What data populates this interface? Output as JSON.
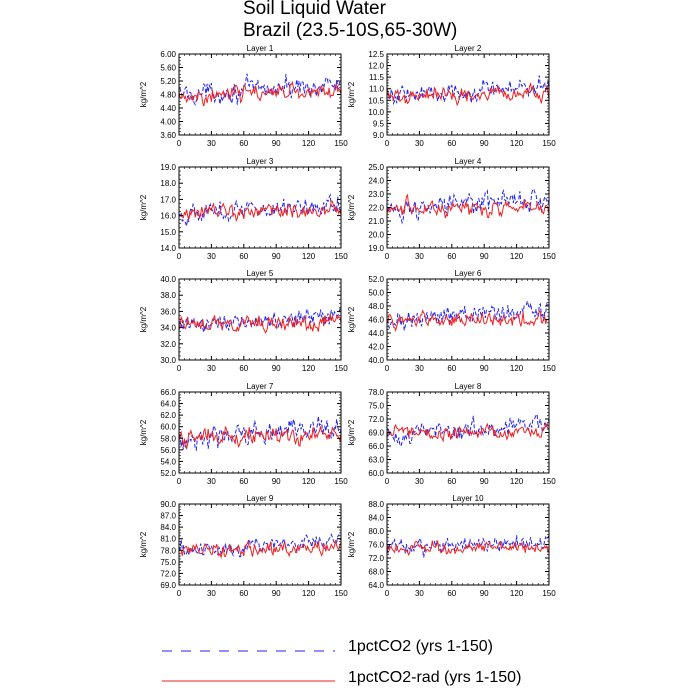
{
  "title": "Soil Liquid Water",
  "subtitle": "Brazil (23.5-10S,65-30W)",
  "colors": {
    "series_a": "#2222ee",
    "series_b": "#ee2222"
  },
  "legend": [
    {
      "label": "1pctCO2 (yrs 1-150)",
      "style": "dashed",
      "color": "#2222ee"
    },
    {
      "label": "1pctCO2-rad (yrs 1-150)",
      "style": "solid",
      "color": "#ee2222"
    }
  ],
  "chart_data": [
    {
      "type": "line",
      "title": "Layer 1",
      "ylabel": "kg/m^2",
      "xlim": [
        0,
        150
      ],
      "ylim": [
        3.6,
        6.0
      ],
      "xticks": [
        "0",
        "30",
        "60",
        "90",
        "120",
        "150"
      ],
      "yticks": [
        "3.60",
        "4.00",
        "4.40",
        "4.80",
        "5.20",
        "5.60",
        "6.00"
      ],
      "series": [
        {
          "name": "1pctCO2 (yrs 1-150)",
          "mean": 4.8,
          "amp": 0.5,
          "trend": 0.3
        },
        {
          "name": "1pctCO2-rad (yrs 1-150)",
          "mean": 4.8,
          "amp": 0.4,
          "trend": 0.1
        }
      ]
    },
    {
      "type": "line",
      "title": "Layer 2",
      "ylabel": "kg/m^2",
      "xlim": [
        0,
        150
      ],
      "ylim": [
        9.0,
        12.5
      ],
      "xticks": [
        "0",
        "30",
        "60",
        "90",
        "120",
        "150"
      ],
      "yticks": [
        "9.0",
        "9.5",
        "10.0",
        "10.5",
        "11.0",
        "11.5",
        "12.0",
        "12.5"
      ],
      "series": [
        {
          "name": "1pctCO2 (yrs 1-150)",
          "mean": 10.7,
          "amp": 0.7,
          "trend": 0.4
        },
        {
          "name": "1pctCO2-rad (yrs 1-150)",
          "mean": 10.7,
          "amp": 0.55,
          "trend": 0.1
        }
      ]
    },
    {
      "type": "line",
      "title": "Layer 3",
      "ylabel": "kg/m^2",
      "xlim": [
        0,
        150
      ],
      "ylim": [
        14.0,
        19.0
      ],
      "xticks": [
        "0",
        "30",
        "60",
        "90",
        "120",
        "150"
      ],
      "yticks": [
        "14.0",
        "15.0",
        "16.0",
        "17.0",
        "18.0",
        "19.0"
      ],
      "series": [
        {
          "name": "1pctCO2 (yrs 1-150)",
          "mean": 16.1,
          "amp": 1.0,
          "trend": 0.6
        },
        {
          "name": "1pctCO2-rad (yrs 1-150)",
          "mean": 16.1,
          "amp": 0.8,
          "trend": 0.2
        }
      ]
    },
    {
      "type": "line",
      "title": "Layer 4",
      "ylabel": "kg/m^2",
      "xlim": [
        0,
        150
      ],
      "ylim": [
        19.0,
        25.0
      ],
      "xticks": [
        "0",
        "30",
        "60",
        "90",
        "120",
        "150"
      ],
      "yticks": [
        "19.0",
        "20.0",
        "21.0",
        "22.0",
        "23.0",
        "24.0",
        "25.0"
      ],
      "series": [
        {
          "name": "1pctCO2 (yrs 1-150)",
          "mean": 21.8,
          "amp": 1.3,
          "trend": 0.8
        },
        {
          "name": "1pctCO2-rad (yrs 1-150)",
          "mean": 21.8,
          "amp": 1.0,
          "trend": 0.3
        }
      ]
    },
    {
      "type": "line",
      "title": "Layer 5",
      "ylabel": "kg/m^2",
      "xlim": [
        0,
        150
      ],
      "ylim": [
        30.0,
        40.0
      ],
      "xticks": [
        "0",
        "30",
        "60",
        "90",
        "120",
        "150"
      ],
      "yticks": [
        "30.0",
        "32.0",
        "34.0",
        "36.0",
        "38.0",
        "40.0"
      ],
      "series": [
        {
          "name": "1pctCO2 (yrs 1-150)",
          "mean": 34.3,
          "amp": 2.0,
          "trend": 1.2
        },
        {
          "name": "1pctCO2-rad (yrs 1-150)",
          "mean": 34.3,
          "amp": 1.6,
          "trend": 0.4
        }
      ]
    },
    {
      "type": "line",
      "title": "Layer 6",
      "ylabel": "kg/m^2",
      "xlim": [
        0,
        150
      ],
      "ylim": [
        40.0,
        52.0
      ],
      "xticks": [
        "0",
        "30",
        "60",
        "90",
        "120",
        "150"
      ],
      "yticks": [
        "40.0",
        "42.0",
        "44.0",
        "46.0",
        "48.0",
        "50.0",
        "52.0"
      ],
      "series": [
        {
          "name": "1pctCO2 (yrs 1-150)",
          "mean": 45.8,
          "amp": 2.5,
          "trend": 1.5
        },
        {
          "name": "1pctCO2-rad (yrs 1-150)",
          "mean": 45.8,
          "amp": 2.0,
          "trend": 0.5
        }
      ]
    },
    {
      "type": "line",
      "title": "Layer 7",
      "ylabel": "kg/m^2",
      "xlim": [
        0,
        150
      ],
      "ylim": [
        52.0,
        66.0
      ],
      "xticks": [
        "0",
        "30",
        "60",
        "90",
        "120",
        "150"
      ],
      "yticks": [
        "52.0",
        "54.0",
        "56.0",
        "58.0",
        "60.0",
        "62.0",
        "64.0",
        "66.0"
      ],
      "series": [
        {
          "name": "1pctCO2 (yrs 1-150)",
          "mean": 58.0,
          "amp": 3.0,
          "trend": 1.8
        },
        {
          "name": "1pctCO2-rad (yrs 1-150)",
          "mean": 58.0,
          "amp": 2.4,
          "trend": 0.6
        }
      ]
    },
    {
      "type": "line",
      "title": "Layer 8",
      "ylabel": "kg/m^2",
      "xlim": [
        0,
        150
      ],
      "ylim": [
        60.0,
        78.0
      ],
      "xticks": [
        "0",
        "30",
        "60",
        "90",
        "120",
        "150"
      ],
      "yticks": [
        "60.0",
        "63.0",
        "66.0",
        "69.0",
        "72.0",
        "75.0",
        "78.0"
      ],
      "series": [
        {
          "name": "1pctCO2 (yrs 1-150)",
          "mean": 68.8,
          "amp": 3.5,
          "trend": 2.0
        },
        {
          "name": "1pctCO2-rad (yrs 1-150)",
          "mean": 68.8,
          "amp": 2.8,
          "trend": 0.7
        }
      ]
    },
    {
      "type": "line",
      "title": "Layer 9",
      "ylabel": "kg/m^2",
      "xlim": [
        0,
        150
      ],
      "ylim": [
        69.0,
        90.0
      ],
      "xticks": [
        "0",
        "30",
        "60",
        "90",
        "120",
        "150"
      ],
      "yticks": [
        "69.0",
        "72.0",
        "75.0",
        "78.0",
        "81.0",
        "84.0",
        "87.0",
        "90.0"
      ],
      "series": [
        {
          "name": "1pctCO2 (yrs 1-150)",
          "mean": 78.0,
          "amp": 4.0,
          "trend": 2.5
        },
        {
          "name": "1pctCO2-rad (yrs 1-150)",
          "mean": 78.0,
          "amp": 3.2,
          "trend": 0.8
        }
      ]
    },
    {
      "type": "line",
      "title": "Layer 10",
      "ylabel": "kg/m^2",
      "xlim": [
        0,
        150
      ],
      "ylim": [
        64.0,
        88.0
      ],
      "xticks": [
        "0",
        "30",
        "60",
        "90",
        "120",
        "150"
      ],
      "yticks": [
        "64.0",
        "68.0",
        "72.0",
        "76.0",
        "80.0",
        "84.0",
        "88.0"
      ],
      "series": [
        {
          "name": "1pctCO2 (yrs 1-150)",
          "mean": 74.5,
          "amp": 4.0,
          "trend": 2.5
        },
        {
          "name": "1pctCO2-rad (yrs 1-150)",
          "mean": 74.5,
          "amp": 3.2,
          "trend": 0.8
        }
      ]
    }
  ]
}
